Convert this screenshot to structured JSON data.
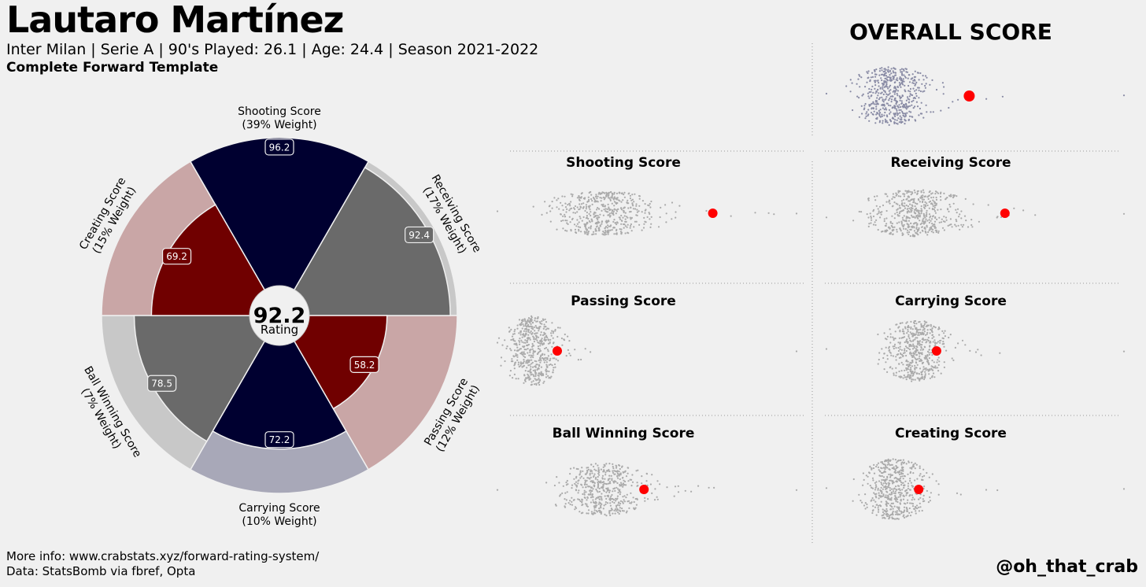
{
  "header": {
    "player_name": "Lautaro Martínez",
    "subtitle": "Inter Milan  | Serie A | 90's Played: 26.1 | Age: 24.4 | Season 2021-2022",
    "template": "Complete Forward Template"
  },
  "overall_title": "OVERALL SCORE",
  "footer": {
    "more_info": "More info: www.crabstats.xyz/forward-rating-system/",
    "data_source": "Data: StatsBomb via fbref, Opta",
    "handle": "@oh_that_crab"
  },
  "colors": {
    "background": "#f0f0f0",
    "navy": "#000030",
    "dark_red": "#700000",
    "gray": "#6a6a6a",
    "highlight": "#ff0000",
    "swarm_gray": "#aaaaaa",
    "swarm_navy": "#888aa4"
  },
  "chart_data": [
    {
      "type": "pie",
      "subtype": "polar-area",
      "center_value": "92.2",
      "center_label": "Rating",
      "range": [
        0,
        100
      ],
      "slices": [
        {
          "name": "Shooting Score",
          "weight_label": "(39% Weight)",
          "value": 96.2,
          "fill": "#000030",
          "track": "#a8a8b8"
        },
        {
          "name": "Receiving Score",
          "weight_label": "(17% Weight)",
          "value": 92.4,
          "fill": "#6a6a6a",
          "track": "#c8c8c8"
        },
        {
          "name": "Passing Score",
          "weight_label": "(12% Weight)",
          "value": 58.2,
          "fill": "#700000",
          "track": "#c9a6a6"
        },
        {
          "name": "Carrying Score",
          "weight_label": "(10% Weight)",
          "value": 72.2,
          "fill": "#000030",
          "track": "#a8a8b8"
        },
        {
          "name": "Ball Winning Score",
          "weight_label": "(7% Weight)",
          "value": 78.5,
          "fill": "#6a6a6a",
          "track": "#c8c8c8"
        },
        {
          "name": "Creating Score",
          "weight_label": "(15% Weight)",
          "value": 69.2,
          "fill": "#700000",
          "track": "#c9a6a6"
        }
      ]
    },
    {
      "type": "scatter",
      "subtype": "beeswarm",
      "panels": [
        {
          "title": "OVERALL SCORE",
          "highlight_percentile": 0.48,
          "center": 0.22,
          "spread": 0.14,
          "height": 1.0,
          "color": "#888aa4"
        },
        {
          "title": "Shooting Score",
          "highlight_percentile": 0.72,
          "center": 0.35,
          "spread": 0.2,
          "height": 0.75,
          "color": "#aaaaaa"
        },
        {
          "title": "Receiving Score",
          "highlight_percentile": 0.6,
          "center": 0.3,
          "spread": 0.18,
          "height": 0.8,
          "color": "#aaaaaa"
        },
        {
          "title": "Passing Score",
          "highlight_percentile": 0.2,
          "center": 0.12,
          "spread": 0.1,
          "height": 1.2,
          "color": "#aaaaaa"
        },
        {
          "title": "Carrying Score",
          "highlight_percentile": 0.37,
          "center": 0.3,
          "spread": 0.12,
          "height": 1.05,
          "color": "#aaaaaa"
        },
        {
          "title": "Ball Winning Score",
          "highlight_percentile": 0.49,
          "center": 0.35,
          "spread": 0.16,
          "height": 0.9,
          "color": "#aaaaaa"
        },
        {
          "title": "Creating Score",
          "highlight_percentile": 0.31,
          "center": 0.23,
          "spread": 0.12,
          "height": 1.05,
          "color": "#aaaaaa"
        }
      ]
    }
  ]
}
